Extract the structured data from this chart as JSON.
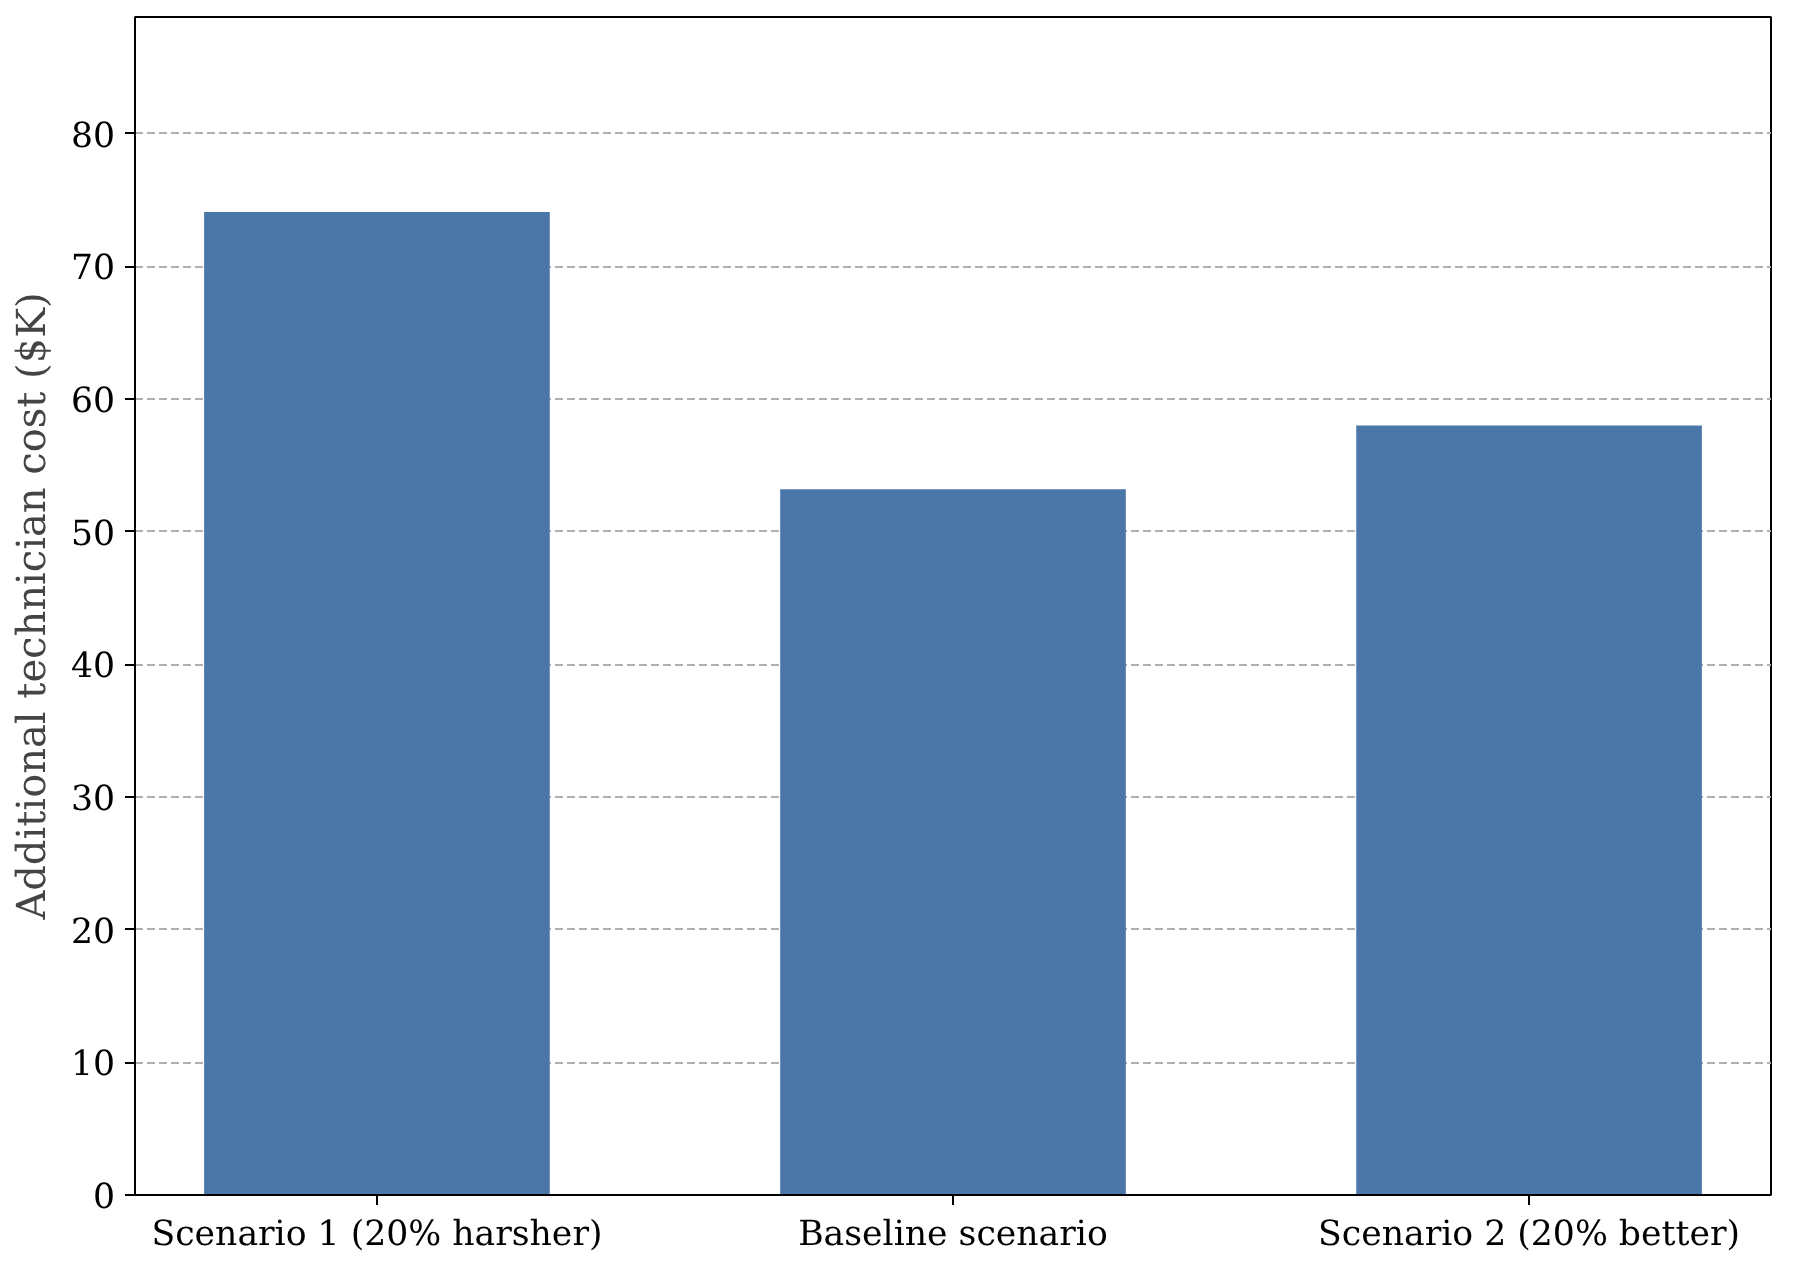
{
  "chart_data": {
    "type": "bar",
    "ylabel": "Additional technician cost ($K)",
    "categories": [
      "Scenario 1 (20% harsher)",
      "Baseline scenario",
      "Scenario 2 (20% better)"
    ],
    "values": [
      74.1,
      53.2,
      58.0
    ],
    "color": "#4a76a8",
    "ylim": [
      0,
      88.8
    ],
    "yticks": [
      0,
      10,
      20,
      30,
      40,
      50,
      60,
      70,
      80
    ],
    "grid": "y"
  }
}
